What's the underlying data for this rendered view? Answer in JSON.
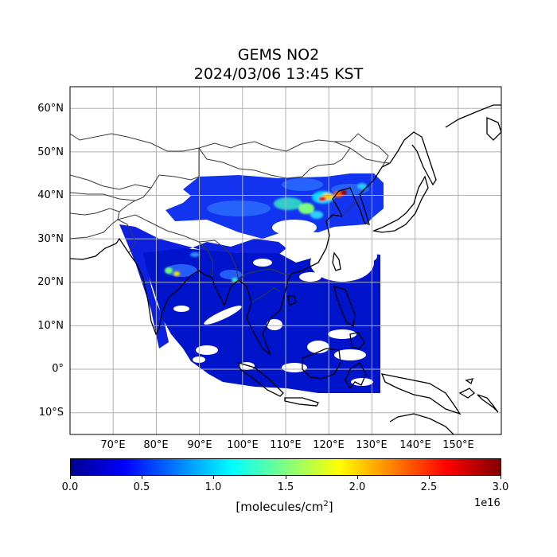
{
  "title": {
    "line1": "GEMS NO2",
    "line2": "2024/03/06 13:45 KST"
  },
  "map": {
    "projection": "plate-carree",
    "lon_range": [
      60,
      160
    ],
    "lat_range": [
      -15,
      65
    ],
    "grid": true,
    "lon_ticks": [
      "70°E",
      "80°E",
      "90°E",
      "100°E",
      "110°E",
      "120°E",
      "130°E",
      "140°E",
      "150°E"
    ],
    "lat_ticks": [
      "60°N",
      "50°N",
      "40°N",
      "30°N",
      "20°N",
      "10°N",
      "0°",
      "10°S"
    ],
    "layer": "GEMS NO2 tropospheric column over East and South Asia; values mostly 0–0.5e16 with hotspots near 115–127°E, 35–40°N reaching up to 3.0e16"
  },
  "colorbar": {
    "colormap": "jet",
    "ticks": [
      "0.0",
      "0.5",
      "1.0",
      "1.5",
      "2.0",
      "2.5",
      "3.0"
    ],
    "range": [
      0.0,
      3.0
    ],
    "label_base": "[molecules/cm",
    "label_sup": "2",
    "label_end": "]",
    "exponent": "1e16"
  },
  "colors": {
    "low": "#00008f",
    "mid": "#00ffff",
    "high": "#800000"
  }
}
